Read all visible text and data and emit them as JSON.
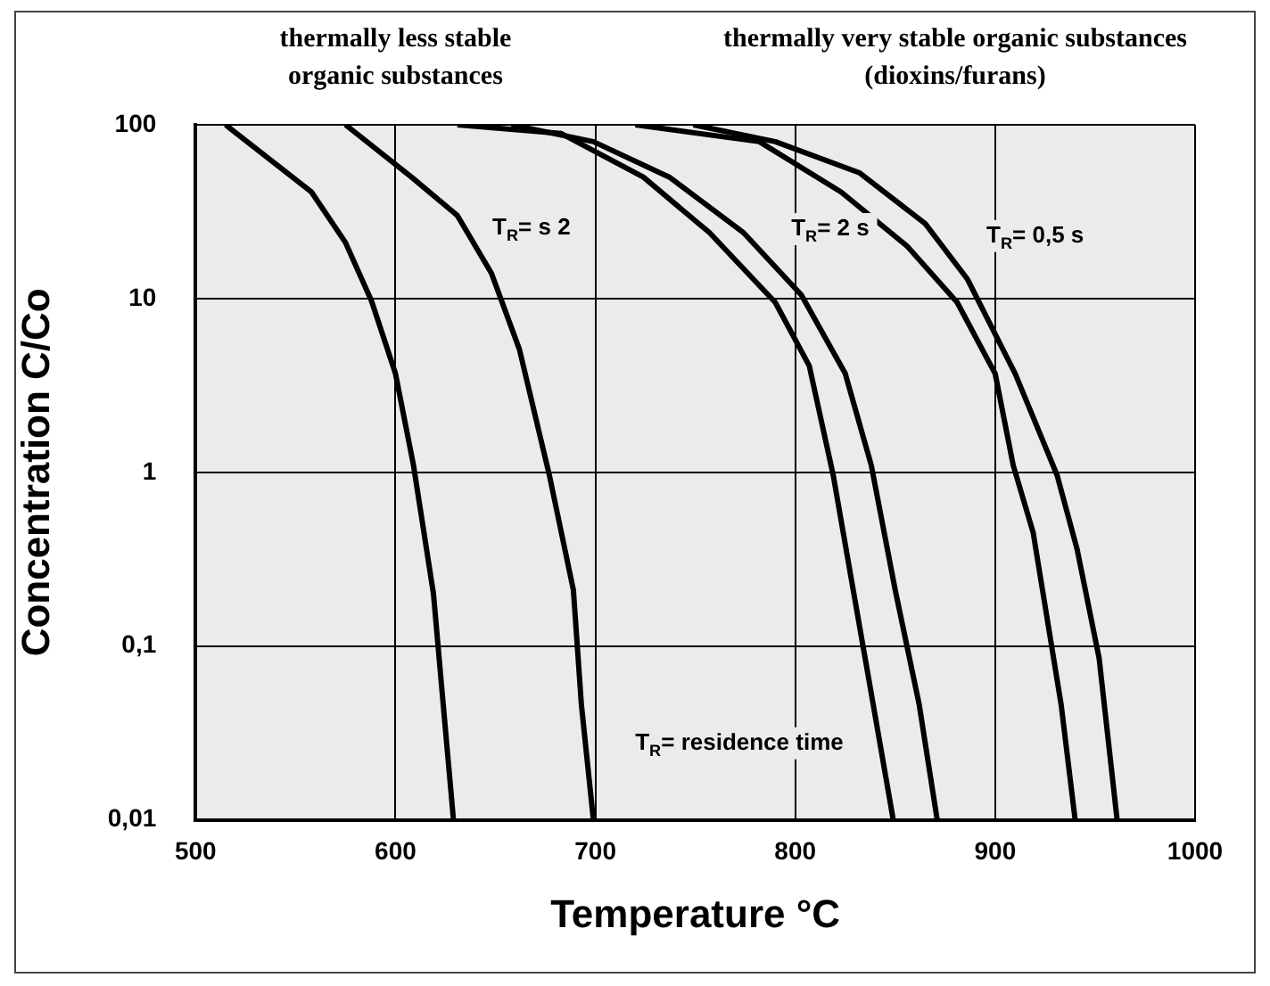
{
  "chart_data": {
    "type": "line",
    "xlabel": "Temperature °C",
    "ylabel": "Concentration C/Co",
    "log": "y",
    "grid": true,
    "legend": false,
    "marker": "none",
    "line_style": "solid",
    "xlim": [
      500,
      1000
    ],
    "xticks": [
      500,
      600,
      700,
      800,
      900,
      1000
    ],
    "ylim": [
      0.01,
      100
    ],
    "yticks": [
      {
        "value": 0.01,
        "label": "0,01"
      },
      {
        "value": 0.1,
        "label": "0,1"
      },
      1,
      10,
      100
    ],
    "series": [
      {
        "color": "#000000",
        "x": [
          515,
          558,
          575,
          588,
          600,
          609,
          619,
          623,
          629
        ],
        "values": [
          100,
          41,
          21,
          9.7,
          3.7,
          1.1,
          0.2,
          0.06,
          0.01
        ]
      },
      {
        "color": "#000000",
        "x": [
          575,
          608,
          631,
          648,
          662,
          677,
          689,
          693,
          699
        ],
        "values": [
          100,
          50,
          30,
          14,
          5.1,
          0.96,
          0.21,
          0.046,
          0.01
        ]
      },
      {
        "color": "#000000",
        "x": [
          631,
          683,
          724,
          757,
          790,
          807,
          819,
          829,
          839,
          849
        ],
        "values": [
          100,
          89,
          50,
          24,
          9.5,
          4.1,
          0.96,
          0.21,
          0.046,
          0.01
        ]
      },
      {
        "color": "#000000",
        "x": [
          658,
          699,
          737,
          774,
          803,
          825,
          838,
          850,
          862,
          871
        ],
        "values": [
          100,
          80,
          50,
          24,
          10.5,
          3.7,
          1.1,
          0.21,
          0.046,
          0.01
        ]
      },
      {
        "color": "#000000",
        "x": [
          720,
          782,
          823,
          856,
          881,
          900,
          909,
          919,
          933,
          940
        ],
        "values": [
          100,
          80,
          41,
          20,
          9.5,
          3.7,
          1.1,
          0.45,
          0.046,
          0.01
        ]
      },
      {
        "color": "#000000",
        "x": [
          749,
          790,
          832,
          865,
          886,
          910,
          931,
          941,
          952,
          961
        ],
        "values": [
          100,
          80,
          53,
          27,
          13,
          3.7,
          0.96,
          0.36,
          0.085,
          0.01
        ]
      }
    ],
    "annotations": [
      "thermally less stable organic substances",
      "thermally very stable organic substances (dioxins/furans)",
      "T$_{R}$= s 2",
      "T$_{R}$= 2 s",
      "T$_{R}$= 0,5 s",
      "T$_{R}$= residence time"
    ]
  }
}
